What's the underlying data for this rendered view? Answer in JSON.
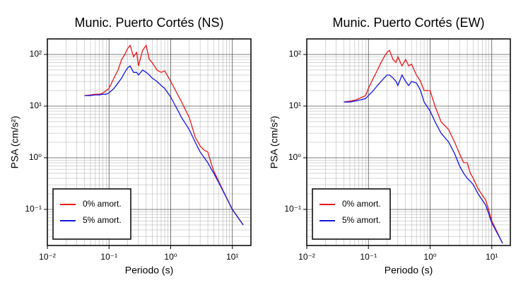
{
  "chart_data": [
    {
      "type": "line",
      "title": "Munic. Puerto Cortés (NS)",
      "x_label": "Periodo (s)",
      "y_label": "PSA (cm/s²)",
      "log_x": true,
      "log_y": true,
      "grid": true,
      "minor_grid": true,
      "legend": "lower left",
      "xlim": [
        0.01,
        20
      ],
      "ylim": [
        0.02,
        200
      ],
      "xticks": [
        {
          "value": 0.01,
          "label": "10⁻²"
        },
        {
          "value": 0.1,
          "label": "10⁻¹"
        },
        {
          "value": 1,
          "label": "10⁰"
        },
        {
          "value": 10,
          "label": "10¹"
        }
      ],
      "yticks": [
        {
          "value": 0.1,
          "label": "10⁻¹"
        },
        {
          "value": 1,
          "label": "10⁰"
        },
        {
          "value": 10,
          "label": "10¹"
        },
        {
          "value": 100,
          "label": "10²"
        }
      ],
      "x": [
        0.04,
        0.05,
        0.06,
        0.07,
        0.08,
        0.09,
        0.1,
        0.12,
        0.14,
        0.16,
        0.18,
        0.2,
        0.22,
        0.25,
        0.28,
        0.3,
        0.35,
        0.4,
        0.45,
        0.5,
        0.6,
        0.7,
        0.8,
        1.0,
        1.2,
        1.5,
        2,
        2.5,
        3,
        3.5,
        4,
        4.5,
        5,
        6,
        8,
        10,
        15
      ],
      "series": [
        {
          "name": "0% amort.",
          "color": "#e8191a",
          "values": [
            16,
            16.5,
            17,
            17,
            18,
            20,
            22,
            35,
            50,
            80,
            100,
            130,
            150,
            90,
            110,
            60,
            120,
            150,
            80,
            70,
            50,
            45,
            48,
            30,
            20,
            12,
            6,
            2.5,
            1.7,
            1.4,
            1.3,
            0.8,
            0.55,
            0.35,
            0.17,
            0.1,
            0.05
          ]
        },
        {
          "name": "5% amort.",
          "color": "#1515e0",
          "values": [
            16,
            16,
            16.5,
            16.5,
            17,
            17,
            18,
            22,
            28,
            35,
            45,
            55,
            60,
            45,
            45,
            40,
            50,
            45,
            40,
            35,
            30,
            25,
            22,
            15,
            10,
            6,
            3.5,
            2,
            1.3,
            1,
            0.8,
            0.62,
            0.5,
            0.33,
            0.17,
            0.1,
            0.05
          ]
        }
      ]
    },
    {
      "type": "line",
      "title": "Munic. Puerto Cortés (EW)",
      "x_label": "Periodo (s)",
      "y_label": "PSA (cm/s²)",
      "log_x": true,
      "log_y": true,
      "grid": true,
      "minor_grid": true,
      "legend": "lower left",
      "xlim": [
        0.01,
        20
      ],
      "ylim": [
        0.02,
        200
      ],
      "xticks": [
        {
          "value": 0.01,
          "label": "10⁻²"
        },
        {
          "value": 0.1,
          "label": "10⁻¹"
        },
        {
          "value": 1,
          "label": "10⁰"
        },
        {
          "value": 10,
          "label": "10¹"
        }
      ],
      "yticks": [
        {
          "value": 0.1,
          "label": "10⁻¹"
        },
        {
          "value": 1,
          "label": "10⁰"
        },
        {
          "value": 10,
          "label": "10¹"
        },
        {
          "value": 100,
          "label": "10²"
        }
      ],
      "x": [
        0.04,
        0.05,
        0.06,
        0.07,
        0.08,
        0.09,
        0.1,
        0.12,
        0.14,
        0.16,
        0.18,
        0.2,
        0.22,
        0.25,
        0.28,
        0.3,
        0.35,
        0.4,
        0.45,
        0.5,
        0.6,
        0.7,
        0.8,
        1.0,
        1.2,
        1.5,
        2,
        2.5,
        3,
        3.5,
        4,
        4.5,
        5,
        6,
        8,
        10,
        15
      ],
      "series": [
        {
          "name": "0% amort.",
          "color": "#e8191a",
          "values": [
            12,
            12.5,
            13,
            14,
            15,
            16,
            22,
            35,
            50,
            70,
            90,
            110,
            120,
            80,
            70,
            90,
            60,
            80,
            60,
            65,
            40,
            30,
            20,
            20,
            10,
            5,
            3.5,
            2,
            1.2,
            0.8,
            0.8,
            0.5,
            0.4,
            0.25,
            0.15,
            0.06,
            0.022
          ]
        },
        {
          "name": "5% amort.",
          "color": "#1515e0",
          "values": [
            12,
            12,
            12.5,
            13,
            13.5,
            14,
            16,
            20,
            25,
            30,
            35,
            40,
            40,
            35,
            30,
            25,
            40,
            30,
            25,
            30,
            28,
            20,
            12,
            8,
            5,
            3,
            2,
            1.2,
            0.7,
            0.5,
            0.4,
            0.35,
            0.3,
            0.2,
            0.12,
            0.055,
            0.022
          ]
        }
      ]
    }
  ]
}
